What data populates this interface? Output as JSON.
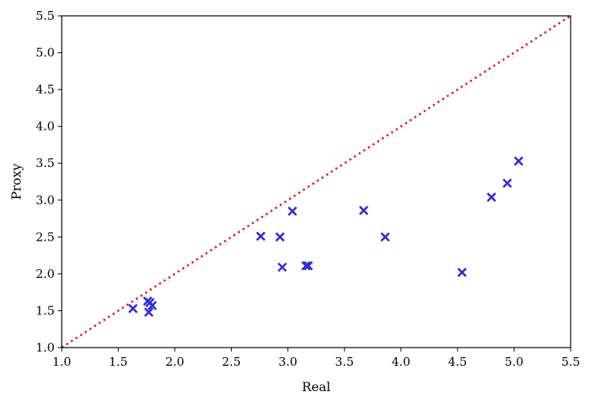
{
  "chart_data": {
    "type": "scatter",
    "xlabel": "Real",
    "ylabel": "Proxy",
    "xlim": [
      1.0,
      5.5
    ],
    "ylim": [
      1.0,
      5.5
    ],
    "xticks": [
      "1.0",
      "1.5",
      "2.0",
      "2.5",
      "3.0",
      "3.5",
      "4.0",
      "4.5",
      "5.0",
      "5.5"
    ],
    "yticks": [
      "1.0",
      "1.5",
      "2.0",
      "2.5",
      "3.0",
      "3.5",
      "4.0",
      "4.5",
      "5.0",
      "5.5"
    ],
    "grid": false,
    "reference_line": {
      "style": "dotted",
      "color": "#ee1111",
      "from": [
        1.0,
        1.0
      ],
      "to": [
        5.5,
        5.5
      ]
    },
    "marker": "x",
    "marker_color": "#2a2ae6",
    "points": [
      {
        "x": 1.63,
        "y": 1.53
      },
      {
        "x": 1.76,
        "y": 1.63
      },
      {
        "x": 1.78,
        "y": 1.61
      },
      {
        "x": 1.8,
        "y": 1.57
      },
      {
        "x": 1.77,
        "y": 1.48
      },
      {
        "x": 2.76,
        "y": 2.51
      },
      {
        "x": 2.93,
        "y": 2.5
      },
      {
        "x": 2.95,
        "y": 2.09
      },
      {
        "x": 3.04,
        "y": 2.85
      },
      {
        "x": 3.16,
        "y": 2.11
      },
      {
        "x": 3.18,
        "y": 2.11
      },
      {
        "x": 3.67,
        "y": 2.86
      },
      {
        "x": 3.86,
        "y": 2.5
      },
      {
        "x": 4.54,
        "y": 2.02
      },
      {
        "x": 4.8,
        "y": 3.04
      },
      {
        "x": 4.94,
        "y": 3.23
      },
      {
        "x": 5.04,
        "y": 3.53
      }
    ]
  }
}
